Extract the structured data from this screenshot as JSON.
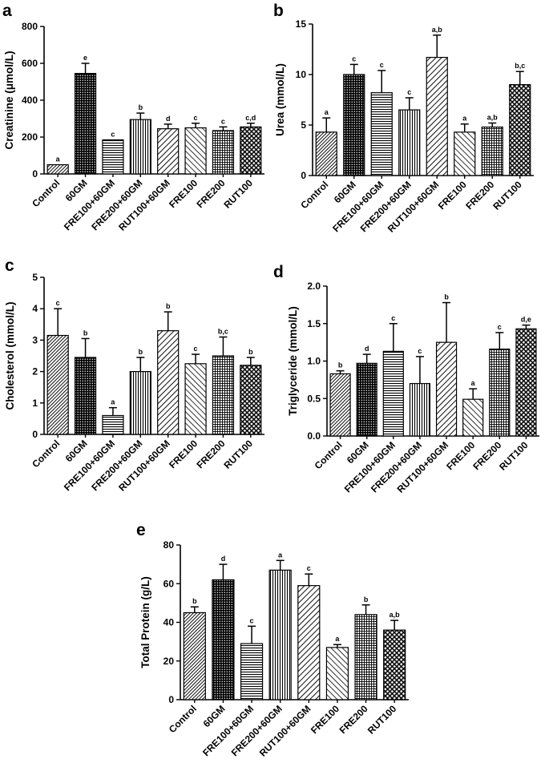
{
  "figure": {
    "categories": [
      "Control",
      "60GM",
      "FRE100+60GM",
      "FRE200+60GM",
      "RUT100+60GM",
      "FRE100",
      "FRE200",
      "RUT100"
    ],
    "colors": {
      "ink": "#000000",
      "background": "#ffffff"
    }
  },
  "chart_data": [
    {
      "panel": "a",
      "type": "bar",
      "ylabel": "Creatinine (μmol/L)",
      "ylim": [
        0,
        800
      ],
      "yticks": [
        0,
        200,
        400,
        600,
        800
      ],
      "categories": [
        "Control",
        "60GM",
        "FRE100+60GM",
        "FRE200+60GM",
        "RUT100+60GM",
        "FRE100",
        "FRE200",
        "RUT100"
      ],
      "values": [
        50,
        545,
        185,
        295,
        245,
        250,
        235,
        255
      ],
      "errors": [
        0,
        55,
        0,
        35,
        25,
        25,
        20,
        20
      ],
      "sig_labels": [
        "a",
        "e",
        "c",
        "b",
        "d",
        "c",
        "c",
        "c,d"
      ]
    },
    {
      "panel": "b",
      "type": "bar",
      "ylabel": "Urea (mmol/L)",
      "ylim": [
        0,
        15
      ],
      "yticks": [
        0,
        5,
        10,
        15
      ],
      "categories": [
        "Control",
        "60GM",
        "FRE100+60GM",
        "FRE200+60GM",
        "RUT100+60GM",
        "FRE100",
        "FRE200",
        "RUT100"
      ],
      "values": [
        4.3,
        10.0,
        8.2,
        6.5,
        11.7,
        4.3,
        4.8,
        9.0
      ],
      "errors": [
        1.4,
        1.0,
        2.2,
        1.2,
        2.2,
        0.8,
        0.4,
        1.3
      ],
      "sig_labels": [
        "a",
        "c",
        "c",
        "c",
        "a,b",
        "a",
        "a,b",
        "b,c"
      ]
    },
    {
      "panel": "c",
      "type": "bar",
      "ylabel": "Cholesterol (mmol/L)",
      "ylim": [
        0,
        5
      ],
      "yticks": [
        0,
        1,
        2,
        3,
        4,
        5
      ],
      "categories": [
        "Control",
        "60GM",
        "FRE100+60GM",
        "FRE200+60GM",
        "RUT100+60GM",
        "FRE100",
        "FRE200",
        "RUT100"
      ],
      "values": [
        3.15,
        2.45,
        0.6,
        2.0,
        3.3,
        2.25,
        2.5,
        2.2
      ],
      "errors": [
        0.85,
        0.6,
        0.25,
        0.45,
        0.6,
        0.3,
        0.6,
        0.25
      ],
      "sig_labels": [
        "c",
        "b",
        "a",
        "b",
        "b",
        "c",
        "b,c",
        "b"
      ]
    },
    {
      "panel": "d",
      "type": "bar",
      "ylabel": "Triglyceride (mmol/L)",
      "ylim": [
        0,
        2.0
      ],
      "yticks": [
        0.0,
        0.5,
        1.0,
        1.5,
        2.0
      ],
      "categories": [
        "Control",
        "60GM",
        "FRE100+60GM",
        "FRE200+60GM",
        "RUT100+60GM",
        "FRE100",
        "FRE200",
        "RUT100"
      ],
      "values": [
        0.83,
        0.97,
        1.13,
        0.7,
        1.25,
        0.49,
        1.16,
        1.43
      ],
      "errors": [
        0.04,
        0.12,
        0.37,
        0.36,
        0.53,
        0.14,
        0.22,
        0.05
      ],
      "sig_labels": [
        "b",
        "d",
        "c",
        "c",
        "b",
        "a",
        "c",
        "d,e"
      ]
    },
    {
      "panel": "e",
      "type": "bar",
      "ylabel": "Total Protein (g/L)",
      "ylim": [
        0,
        80
      ],
      "yticks": [
        0,
        20,
        40,
        60,
        80
      ],
      "categories": [
        "Control",
        "60GM",
        "FRE100+60GM",
        "FRE200+60GM",
        "RUT100+60GM",
        "FRE100",
        "FRE200",
        "RUT100"
      ],
      "values": [
        45,
        62,
        29,
        67,
        59,
        27,
        44,
        36
      ],
      "errors": [
        3,
        8,
        9,
        5,
        6,
        1.5,
        5,
        5
      ],
      "sig_labels": [
        "b",
        "d",
        "c",
        "a",
        "c",
        "a",
        "b",
        "a,b"
      ]
    }
  ]
}
